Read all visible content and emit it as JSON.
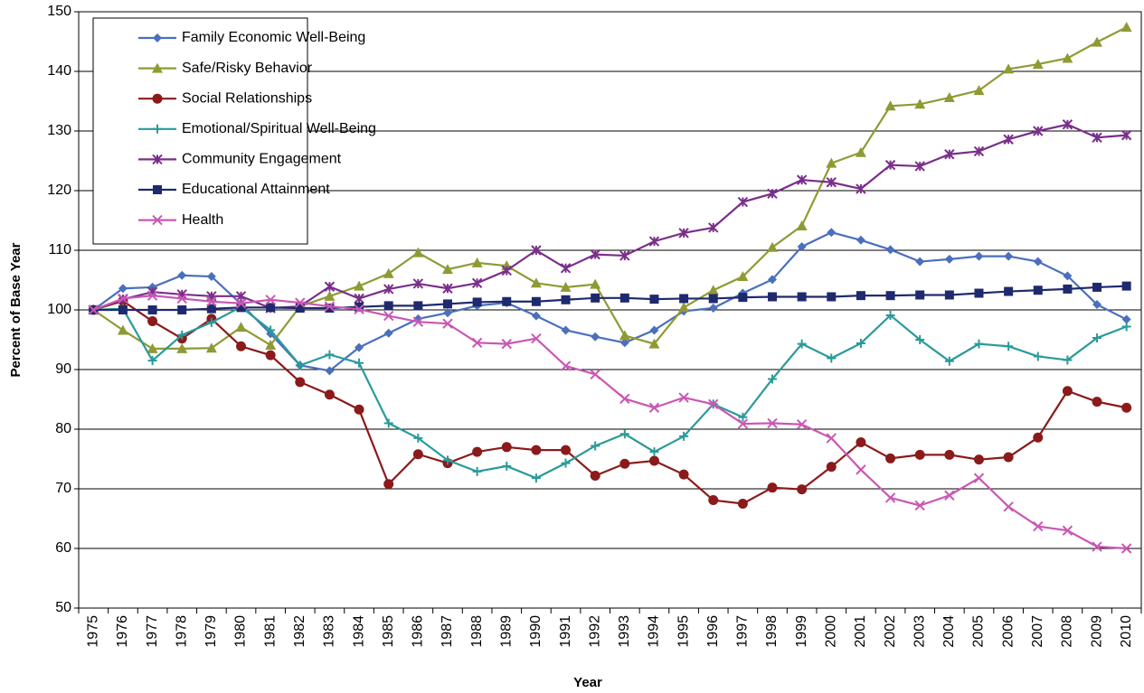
{
  "chart_data": {
    "type": "line",
    "x_label": "Year",
    "y_label": "Percent of Base Year",
    "categories": [
      "1975",
      "1976",
      "1977",
      "1978",
      "1979",
      "1980",
      "1981",
      "1982",
      "1983",
      "1984",
      "1985",
      "1986",
      "1987",
      "1988",
      "1989",
      "1990",
      "1991",
      "1992",
      "1993",
      "1994",
      "1995",
      "1996",
      "1997",
      "1998",
      "1999",
      "2000",
      "2001",
      "2002",
      "2003",
      "2004",
      "2005",
      "2006",
      "2007",
      "2008",
      "2009",
      "2010"
    ],
    "ylim": [
      50,
      150
    ],
    "yticks": [
      50,
      60,
      70,
      80,
      90,
      100,
      110,
      120,
      130,
      140,
      150
    ],
    "grid": true,
    "legend": "upper-left",
    "series": [
      {
        "name": "Family Economic Well-Being",
        "color": "#4a6fbd",
        "marker": "diamond",
        "values": [
          100,
          103.6,
          103.8,
          105.8,
          105.6,
          101,
          96,
          90.7,
          89.8,
          93.7,
          96.1,
          98.5,
          99.5,
          100.7,
          101.2,
          99,
          96.6,
          95.5,
          94.5,
          96.6,
          99.8,
          100.3,
          102.8,
          105.1,
          110.6,
          113,
          111.7,
          110.1,
          108.1,
          108.5,
          109,
          109,
          108.1,
          105.7,
          100.9,
          98.4
        ]
      },
      {
        "name": "Safe/Risky Behavior",
        "color": "#8f9a34",
        "marker": "triangle",
        "values": [
          100,
          96.6,
          93.5,
          93.5,
          93.6,
          97.1,
          94.1,
          100.6,
          102.3,
          104,
          106.1,
          109.6,
          106.8,
          107.9,
          107.4,
          104.5,
          103.8,
          104.3,
          95.7,
          94.3,
          100.4,
          103.3,
          105.6,
          110.5,
          114.1,
          124.6,
          126.4,
          134.2,
          134.5,
          135.6,
          136.8,
          140.4,
          141.2,
          142.2,
          144.9,
          147.4
        ]
      },
      {
        "name": "Social Relationships",
        "color": "#8b1a1a",
        "marker": "circle",
        "values": [
          100,
          101.5,
          98.1,
          95.2,
          98.5,
          93.9,
          92.4,
          87.9,
          85.8,
          83.3,
          70.8,
          75.8,
          74.3,
          76.2,
          77,
          76.5,
          76.5,
          72.2,
          74.2,
          74.7,
          72.4,
          68.1,
          67.5,
          70.2,
          69.9,
          73.7,
          77.8,
          75.1,
          75.7,
          75.7,
          74.9,
          75.3,
          78.6,
          86.4,
          84.6,
          83.6
        ]
      },
      {
        "name": "Emotional/Spiritual Well-Being",
        "color": "#2a9a9a",
        "marker": "plus",
        "values": [
          100,
          100.2,
          91.5,
          95.8,
          97.9,
          100.5,
          96.6,
          90.7,
          92.5,
          91.1,
          81,
          78.5,
          74.8,
          72.9,
          73.8,
          71.8,
          74.3,
          77.2,
          79.2,
          76.2,
          78.8,
          84.2,
          82,
          88.4,
          94.3,
          91.9,
          94.4,
          99.1,
          95,
          91.4,
          94.3,
          93.9,
          92.2,
          91.6,
          95.3,
          97.2
        ]
      },
      {
        "name": "Community Engagement",
        "color": "#7a2f8a",
        "marker": "star",
        "values": [
          100,
          101.8,
          103,
          102.6,
          102.3,
          102.3,
          100.3,
          100.6,
          103.9,
          101.9,
          103.5,
          104.4,
          103.6,
          104.5,
          106.6,
          110,
          107,
          109.3,
          109.1,
          111.5,
          112.9,
          113.8,
          118.1,
          119.5,
          121.8,
          121.4,
          120.3,
          124.3,
          124.1,
          126.1,
          126.6,
          128.6,
          130,
          131.1,
          128.9,
          129.3
        ]
      },
      {
        "name": "Educational Attainment",
        "color": "#1f2a6e",
        "marker": "square",
        "values": [
          100,
          100,
          100,
          100,
          100.2,
          100.4,
          100.4,
          100.3,
          100.3,
          100.5,
          100.7,
          100.7,
          101,
          101.3,
          101.4,
          101.4,
          101.7,
          102,
          102,
          101.8,
          101.9,
          101.9,
          102.1,
          102.2,
          102.2,
          102.2,
          102.4,
          102.4,
          102.5,
          102.5,
          102.8,
          103.1,
          103.3,
          103.5,
          103.8,
          104
        ]
      },
      {
        "name": "Health",
        "color": "#c957b4",
        "marker": "x",
        "values": [
          100,
          101.9,
          102.4,
          101.9,
          101.4,
          101.1,
          101.7,
          101.2,
          100.6,
          100.1,
          99,
          98,
          97.7,
          94.5,
          94.3,
          95.2,
          90.6,
          89.2,
          85.1,
          83.6,
          85.3,
          84.2,
          80.9,
          81,
          80.8,
          78.5,
          73.2,
          68.5,
          67.2,
          68.9,
          71.8,
          67,
          63.7,
          63,
          60.3,
          60
        ]
      }
    ]
  }
}
